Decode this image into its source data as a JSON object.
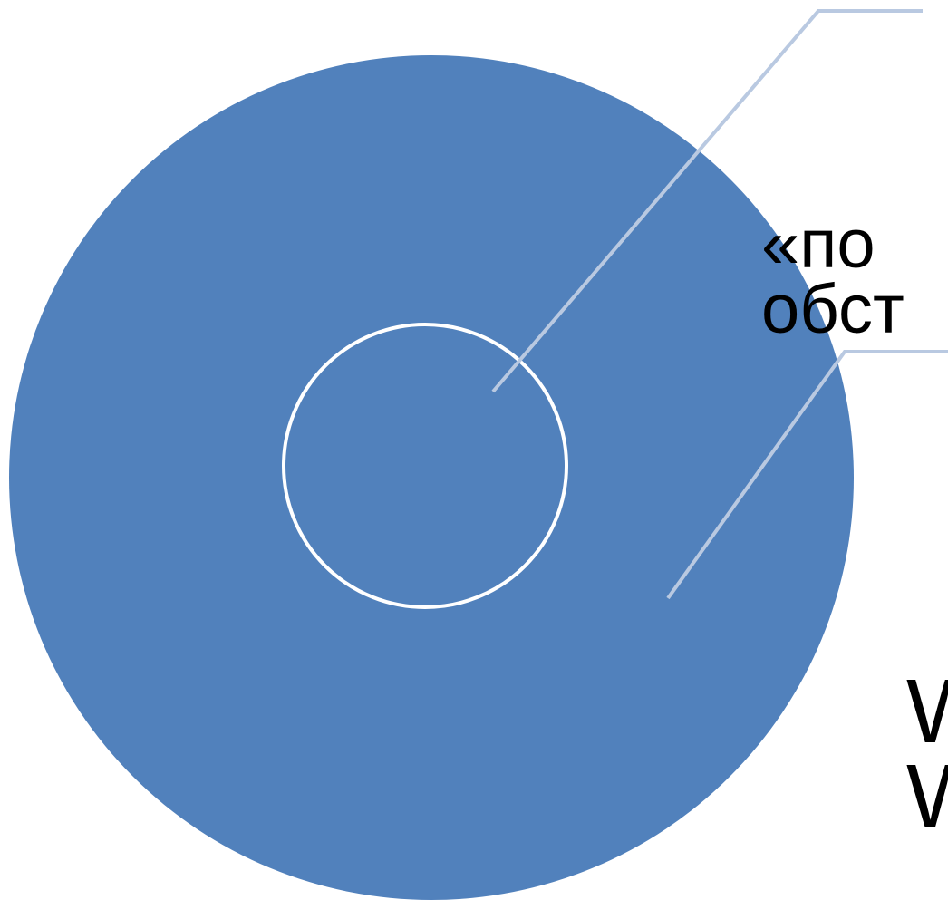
{
  "colors": {
    "outer_circle": "#5181bc",
    "inner_circle_stroke": "#ffffff",
    "leader_line": "#b9c9e1",
    "text": "#000000",
    "background": "#ffffff"
  },
  "labels": {
    "inner": {
      "line1": "«по",
      "line2": "обст"
    },
    "outer": {
      "line1": "W",
      "line2": "W"
    }
  }
}
